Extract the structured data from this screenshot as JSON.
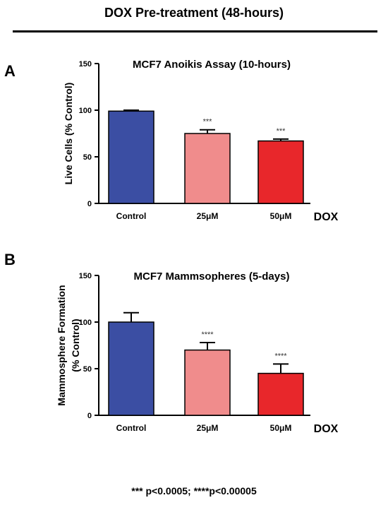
{
  "header": "DOX Pre-treatment (48-hours)",
  "footnote": "*** p<0.0005; ****p<0.00005",
  "colors": {
    "control": "#3b4ea3",
    "dox25": "#f08c8c",
    "dox50": "#e8272b"
  },
  "chart_data": [
    {
      "type": "bar",
      "panel_label": "A",
      "title": "MCF7 Anoikis Assay (10-hours)",
      "ylabel": "Live Cells (% Control)",
      "xlabel": "DOX",
      "categories": [
        "Control",
        "25μM",
        "50μM"
      ],
      "values": [
        99,
        75,
        67
      ],
      "errors": [
        1,
        4,
        2
      ],
      "significance": [
        "",
        "***",
        "***"
      ],
      "ylim": [
        0,
        150
      ],
      "yticks": [
        "0",
        "50",
        "100",
        "150"
      ]
    },
    {
      "type": "bar",
      "panel_label": "B",
      "title": "MCF7 Mammsopheres (5-days)",
      "ylabel": "Mammosphere Formation",
      "ylabel2": "(% Control)",
      "xlabel": "DOX",
      "categories": [
        "Control",
        "25μM",
        "50μM"
      ],
      "values": [
        100,
        70,
        45
      ],
      "errors": [
        10,
        8,
        10
      ],
      "significance": [
        "",
        "****",
        "****"
      ],
      "ylim": [
        0,
        150
      ],
      "yticks": [
        "0",
        "50",
        "100",
        "150"
      ]
    }
  ]
}
